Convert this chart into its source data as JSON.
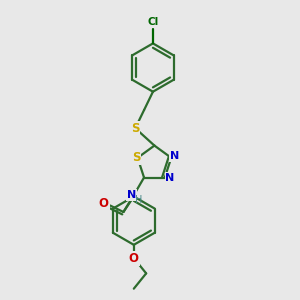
{
  "bg_color": "#e8e8e8",
  "atom_colors": {
    "C": "#2d6b2d",
    "N": "#0000cc",
    "S": "#ccaa00",
    "O": "#cc0000",
    "Cl": "#006600",
    "H": "#4a8a8a",
    "bond": "#2d6b2d"
  },
  "figure_size": [
    3.0,
    3.0
  ],
  "dpi": 100
}
